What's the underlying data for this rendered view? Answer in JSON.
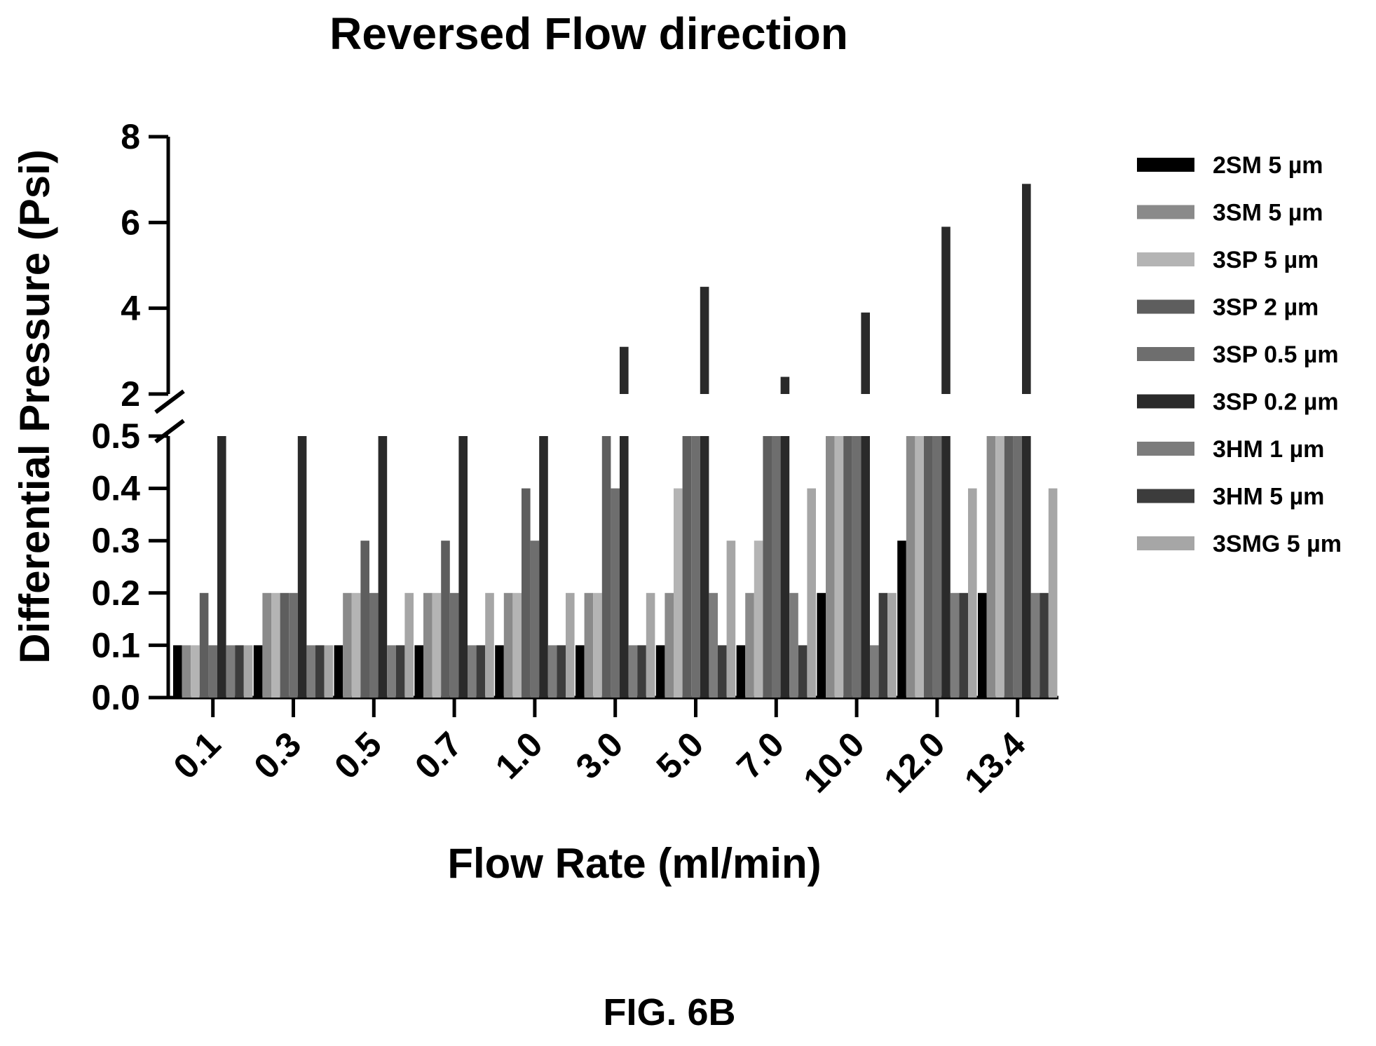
{
  "chart_data": {
    "type": "bar",
    "title": "Reversed Flow direction",
    "xlabel": "Flow Rate (ml/min)",
    "ylabel": "Differential Pressure (Psi)",
    "categories": [
      "0.1",
      "0.3",
      "0.5",
      "0.7",
      "1.0",
      "3.0",
      "5.0",
      "7.0",
      "10.0",
      "12.0",
      "13.4"
    ],
    "y_axis_break": {
      "lower": [
        0.0,
        0.5
      ],
      "upper": [
        2,
        8
      ]
    },
    "lower_ticks": [
      "0.0",
      "0.1",
      "0.2",
      "0.3",
      "0.4",
      "0.5"
    ],
    "upper_ticks": [
      "2",
      "4",
      "6",
      "8"
    ],
    "legend_position": "right",
    "series": [
      {
        "name": "2SM 5 µm",
        "color": "#000000",
        "values": [
          0.1,
          0.1,
          0.1,
          0.1,
          0.1,
          0.1,
          0.1,
          0.1,
          0.2,
          0.3,
          0.2
        ]
      },
      {
        "name": "3SM 5 µm",
        "color": "#8a8a8a",
        "values": [
          0.1,
          0.2,
          0.2,
          0.2,
          0.2,
          0.2,
          0.2,
          0.2,
          0.5,
          0.5,
          0.5
        ]
      },
      {
        "name": "3SP 5 µm",
        "color": "#b4b4b4",
        "values": [
          0.1,
          0.2,
          0.2,
          0.2,
          0.2,
          0.2,
          0.4,
          0.3,
          0.5,
          0.5,
          0.5
        ]
      },
      {
        "name": "3SP 2 µm",
        "color": "#5e5e5e",
        "values": [
          0.2,
          0.2,
          0.3,
          0.3,
          0.4,
          0.5,
          0.5,
          0.5,
          0.5,
          0.5,
          0.5
        ]
      },
      {
        "name": "3SP 0.5 µm",
        "color": "#6e6e6e",
        "values": [
          0.1,
          0.2,
          0.2,
          0.2,
          0.3,
          0.4,
          0.5,
          0.5,
          0.5,
          0.5,
          0.5
        ]
      },
      {
        "name": "3SP 0.2 µm",
        "color": "#2a2a2a",
        "values": [
          0.5,
          0.5,
          0.5,
          0.5,
          0.5,
          3.1,
          4.5,
          2.4,
          3.9,
          5.9,
          6.9
        ]
      },
      {
        "name": "3HM 1 µm",
        "color": "#7c7c7c",
        "values": [
          0.1,
          0.1,
          0.1,
          0.1,
          0.1,
          0.1,
          0.2,
          0.2,
          0.1,
          0.2,
          0.2
        ]
      },
      {
        "name": "3HM 5 µm",
        "color": "#3c3c3c",
        "values": [
          0.1,
          0.1,
          0.1,
          0.1,
          0.1,
          0.1,
          0.1,
          0.1,
          0.2,
          0.2,
          0.2
        ]
      },
      {
        "name": "3SMG 5 µm",
        "color": "#a6a6a6",
        "values": [
          0.1,
          0.1,
          0.2,
          0.2,
          0.2,
          0.2,
          0.3,
          0.4,
          0.2,
          0.4,
          0.4
        ]
      }
    ]
  },
  "figure_label": "FIG. 6B"
}
